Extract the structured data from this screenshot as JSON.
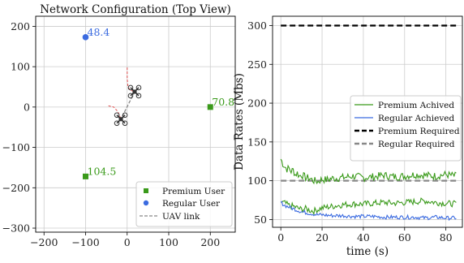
{
  "colors": {
    "premium": "#3a9a1a",
    "regular": "#3b6be0",
    "link": "#888888",
    "trajectory": "#e04a4a",
    "grid": "#cccccc"
  },
  "chart_data": [
    {
      "type": "scatter",
      "title": "Network Configuration (Top View)",
      "xlim": [
        -220,
        260
      ],
      "ylim": [
        -310,
        225
      ],
      "xticks": [
        -200,
        -100,
        0,
        100,
        200
      ],
      "yticks": [
        -300,
        -200,
        -100,
        0,
        100,
        200
      ],
      "xtick_labels": [
        "−200",
        "−100",
        "0",
        "100",
        "200"
      ],
      "ytick_labels": [
        "−300",
        "−200",
        "−100",
        "0",
        "100",
        "200"
      ],
      "grid": true,
      "legend": {
        "position": "lower-right",
        "entries": [
          "Premium User",
          "Regular User",
          "UAV link"
        ]
      },
      "premium_users": [
        {
          "x": 200,
          "y": 0,
          "label": "70.8"
        },
        {
          "x": -100,
          "y": -172,
          "label": "104.5"
        }
      ],
      "regular_users": [
        {
          "x": -100,
          "y": 173,
          "label": "48.4"
        }
      ],
      "uavs": [
        {
          "x": 18,
          "y": 38,
          "icon": "drone-icon"
        },
        {
          "x": -15,
          "y": -30,
          "icon": "drone-icon"
        }
      ],
      "uav_link": [
        [
          18,
          38
        ],
        [
          -15,
          -30
        ]
      ],
      "trajectories": [
        [
          [
            0,
            98
          ],
          [
            0,
            70
          ],
          [
            2,
            50
          ],
          [
            7,
            42
          ],
          [
            18,
            38
          ]
        ],
        [
          [
            -45,
            3
          ],
          [
            -32,
            0
          ],
          [
            -22,
            -12
          ],
          [
            -15,
            -30
          ]
        ]
      ]
    },
    {
      "type": "line",
      "xlabel": "time (s)",
      "ylabel": "Data Rates (Mbs)",
      "xlim": [
        -4,
        88
      ],
      "ylim": [
        40,
        312
      ],
      "xticks": [
        0,
        20,
        40,
        60,
        80
      ],
      "yticks": [
        50,
        100,
        150,
        200,
        250,
        300
      ],
      "grid": true,
      "legend": {
        "position": "center-right",
        "entries": [
          "Premium Achived",
          "Regular Achieved",
          "Premium Required",
          "Regular Required"
        ]
      },
      "premium_required": 300,
      "regular_required": 100,
      "series": [
        {
          "name": "Premium Achived",
          "role": "premium-upper",
          "x_end": 85,
          "points": [
            [
              0,
              128
            ],
            [
              1,
              122
            ],
            [
              2,
              118
            ],
            [
              3,
              115
            ],
            [
              4,
              116
            ],
            [
              5,
              112
            ],
            [
              6,
              114
            ],
            [
              7,
              108
            ],
            [
              8,
              110
            ],
            [
              9,
              106
            ],
            [
              10,
              108
            ],
            [
              12,
              104
            ],
            [
              14,
              103
            ],
            [
              16,
              100
            ],
            [
              18,
              99
            ],
            [
              20,
              102
            ],
            [
              22,
              101
            ],
            [
              25,
              103
            ],
            [
              30,
              104
            ],
            [
              35,
              106
            ],
            [
              40,
              104
            ],
            [
              45,
              105
            ],
            [
              50,
              107
            ],
            [
              55,
              105
            ],
            [
              60,
              106
            ],
            [
              65,
              108
            ],
            [
              70,
              107
            ],
            [
              75,
              106
            ],
            [
              80,
              108
            ],
            [
              85,
              106
            ]
          ]
        },
        {
          "name": "",
          "role": "premium-lower",
          "x_end": 85,
          "points": [
            [
              0,
              73
            ],
            [
              2,
              71
            ],
            [
              4,
              68
            ],
            [
              6,
              67
            ],
            [
              8,
              65
            ],
            [
              10,
              63
            ],
            [
              12,
              64
            ],
            [
              14,
              62
            ],
            [
              16,
              61
            ],
            [
              18,
              63
            ],
            [
              20,
              65
            ],
            [
              25,
              67
            ],
            [
              30,
              69
            ],
            [
              35,
              70
            ],
            [
              40,
              70
            ],
            [
              45,
              71
            ],
            [
              50,
              72
            ],
            [
              55,
              71
            ],
            [
              60,
              72
            ],
            [
              65,
              73
            ],
            [
              70,
              74
            ],
            [
              75,
              72
            ],
            [
              80,
              71
            ],
            [
              85,
              70
            ]
          ]
        },
        {
          "name": "Regular Achieved",
          "role": "regular",
          "x_end": 85,
          "points": [
            [
              0,
              72
            ],
            [
              2,
              68
            ],
            [
              4,
              66
            ],
            [
              6,
              64
            ],
            [
              8,
              62
            ],
            [
              10,
              60
            ],
            [
              12,
              59
            ],
            [
              14,
              58
            ],
            [
              16,
              57
            ],
            [
              18,
              56
            ],
            [
              20,
              56
            ],
            [
              25,
              55
            ],
            [
              30,
              55
            ],
            [
              35,
              54
            ],
            [
              40,
              54
            ],
            [
              45,
              54
            ],
            [
              50,
              53
            ],
            [
              55,
              53
            ],
            [
              60,
              53
            ],
            [
              65,
              53
            ],
            [
              70,
              52
            ],
            [
              75,
              53
            ],
            [
              80,
              52
            ],
            [
              85,
              52
            ]
          ]
        }
      ]
    }
  ]
}
